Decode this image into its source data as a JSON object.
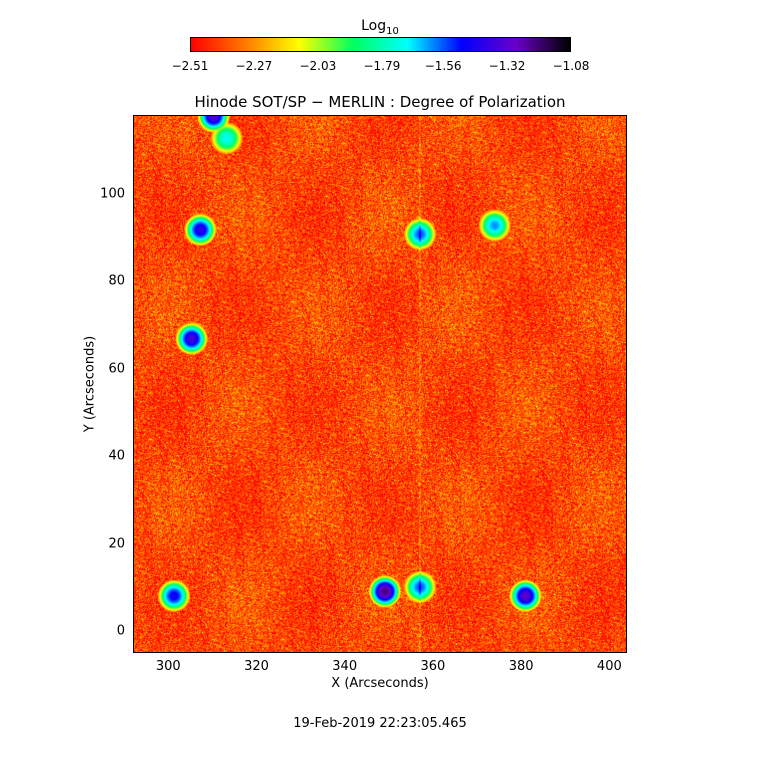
{
  "colorbar": {
    "title": "Log",
    "title_sub": "10",
    "colors": [
      "#ff0000",
      "#ff7a00",
      "#ffff00",
      "#00ff60",
      "#00ffff",
      "#0000ff",
      "#6a00c8",
      "#000000"
    ],
    "ticks": [
      "−2.51",
      "−2.27",
      "−2.03",
      "−1.79",
      "−1.56",
      "−1.32",
      "−1.08"
    ],
    "tick_values": [
      -2.51,
      -2.27,
      -2.03,
      -1.79,
      -1.56,
      -1.32,
      -1.08
    ],
    "range": [
      -2.51,
      -1.08
    ]
  },
  "chart_data": {
    "type": "heatmap",
    "title": "Hinode SOT/SP − MERLIN : Degree of Polarization",
    "xlabel": "X (Arcseconds)",
    "ylabel": "Y (Arcseconds)",
    "xlim": [
      292,
      404
    ],
    "ylim": [
      -5,
      118
    ],
    "xticks": [
      300,
      320,
      340,
      360,
      380,
      400
    ],
    "yticks": [
      0,
      20,
      40,
      60,
      80,
      100
    ],
    "grid": false,
    "value_scale": "log10",
    "value_range": [
      -2.51,
      -1.08
    ],
    "background_value": -2.4,
    "features": [
      {
        "x": 305,
        "y": 67,
        "value": -1.35
      },
      {
        "x": 310,
        "y": 118,
        "value": -1.32
      },
      {
        "x": 307,
        "y": 92,
        "value": -1.4
      },
      {
        "x": 301,
        "y": 8,
        "value": -1.45
      },
      {
        "x": 349,
        "y": 9,
        "value": -1.2
      },
      {
        "x": 381,
        "y": 8,
        "value": -1.3
      },
      {
        "x": 357,
        "y": 10,
        "value": -1.55
      },
      {
        "x": 374,
        "y": 93,
        "value": -1.6
      },
      {
        "x": 357,
        "y": 91,
        "value": -1.55
      },
      {
        "x": 313,
        "y": 113,
        "value": -1.7
      }
    ]
  },
  "footer": {
    "date": "19-Feb-2019 22:23:05.465"
  }
}
